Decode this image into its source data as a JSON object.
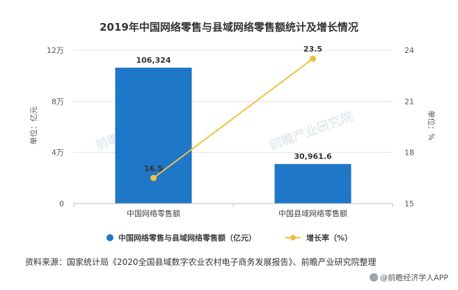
{
  "chart_data": {
    "type": "bar",
    "title": "2019年中国网络零售与县域网络零售额统计及增长情况",
    "categories": [
      "中国网络零售额",
      "中国县域网络零售额"
    ],
    "series": [
      {
        "name": "中国网络零售与县域网络零售额（亿元）",
        "type": "bar",
        "axis": "left",
        "color": "#1f77c8",
        "values": [
          106324,
          30961.6
        ],
        "labels": [
          "106,324",
          "30,961.6"
        ]
      },
      {
        "name": "增长率（%）",
        "type": "line",
        "axis": "right",
        "color": "#f0c040",
        "values": [
          16.5,
          23.5
        ],
        "labels": [
          "16.5",
          "23.5"
        ]
      }
    ],
    "ylabel": "单位：亿元",
    "ylabel_right": "单位：%",
    "ylim": [
      0,
      120000
    ],
    "yticks": [
      0,
      40000,
      80000,
      120000
    ],
    "ytick_labels": [
      "0",
      "4万",
      "8万",
      "12万"
    ],
    "ylim_right": [
      15,
      24
    ],
    "yticks_right": [
      15,
      18,
      21,
      24
    ],
    "ytick_labels_right": [
      "15",
      "18",
      "21",
      "24"
    ],
    "grid": true,
    "legend": "bottom"
  },
  "source_text": "资料来源：国家统计局《2020全国县域数字农业农村电子商务发展报告》、前瞻产业研究院整理",
  "brand_text": "@前瞻经济学人APP",
  "watermarks": [
    "前瞻产业研究院",
    "前瞻产业研究院"
  ]
}
